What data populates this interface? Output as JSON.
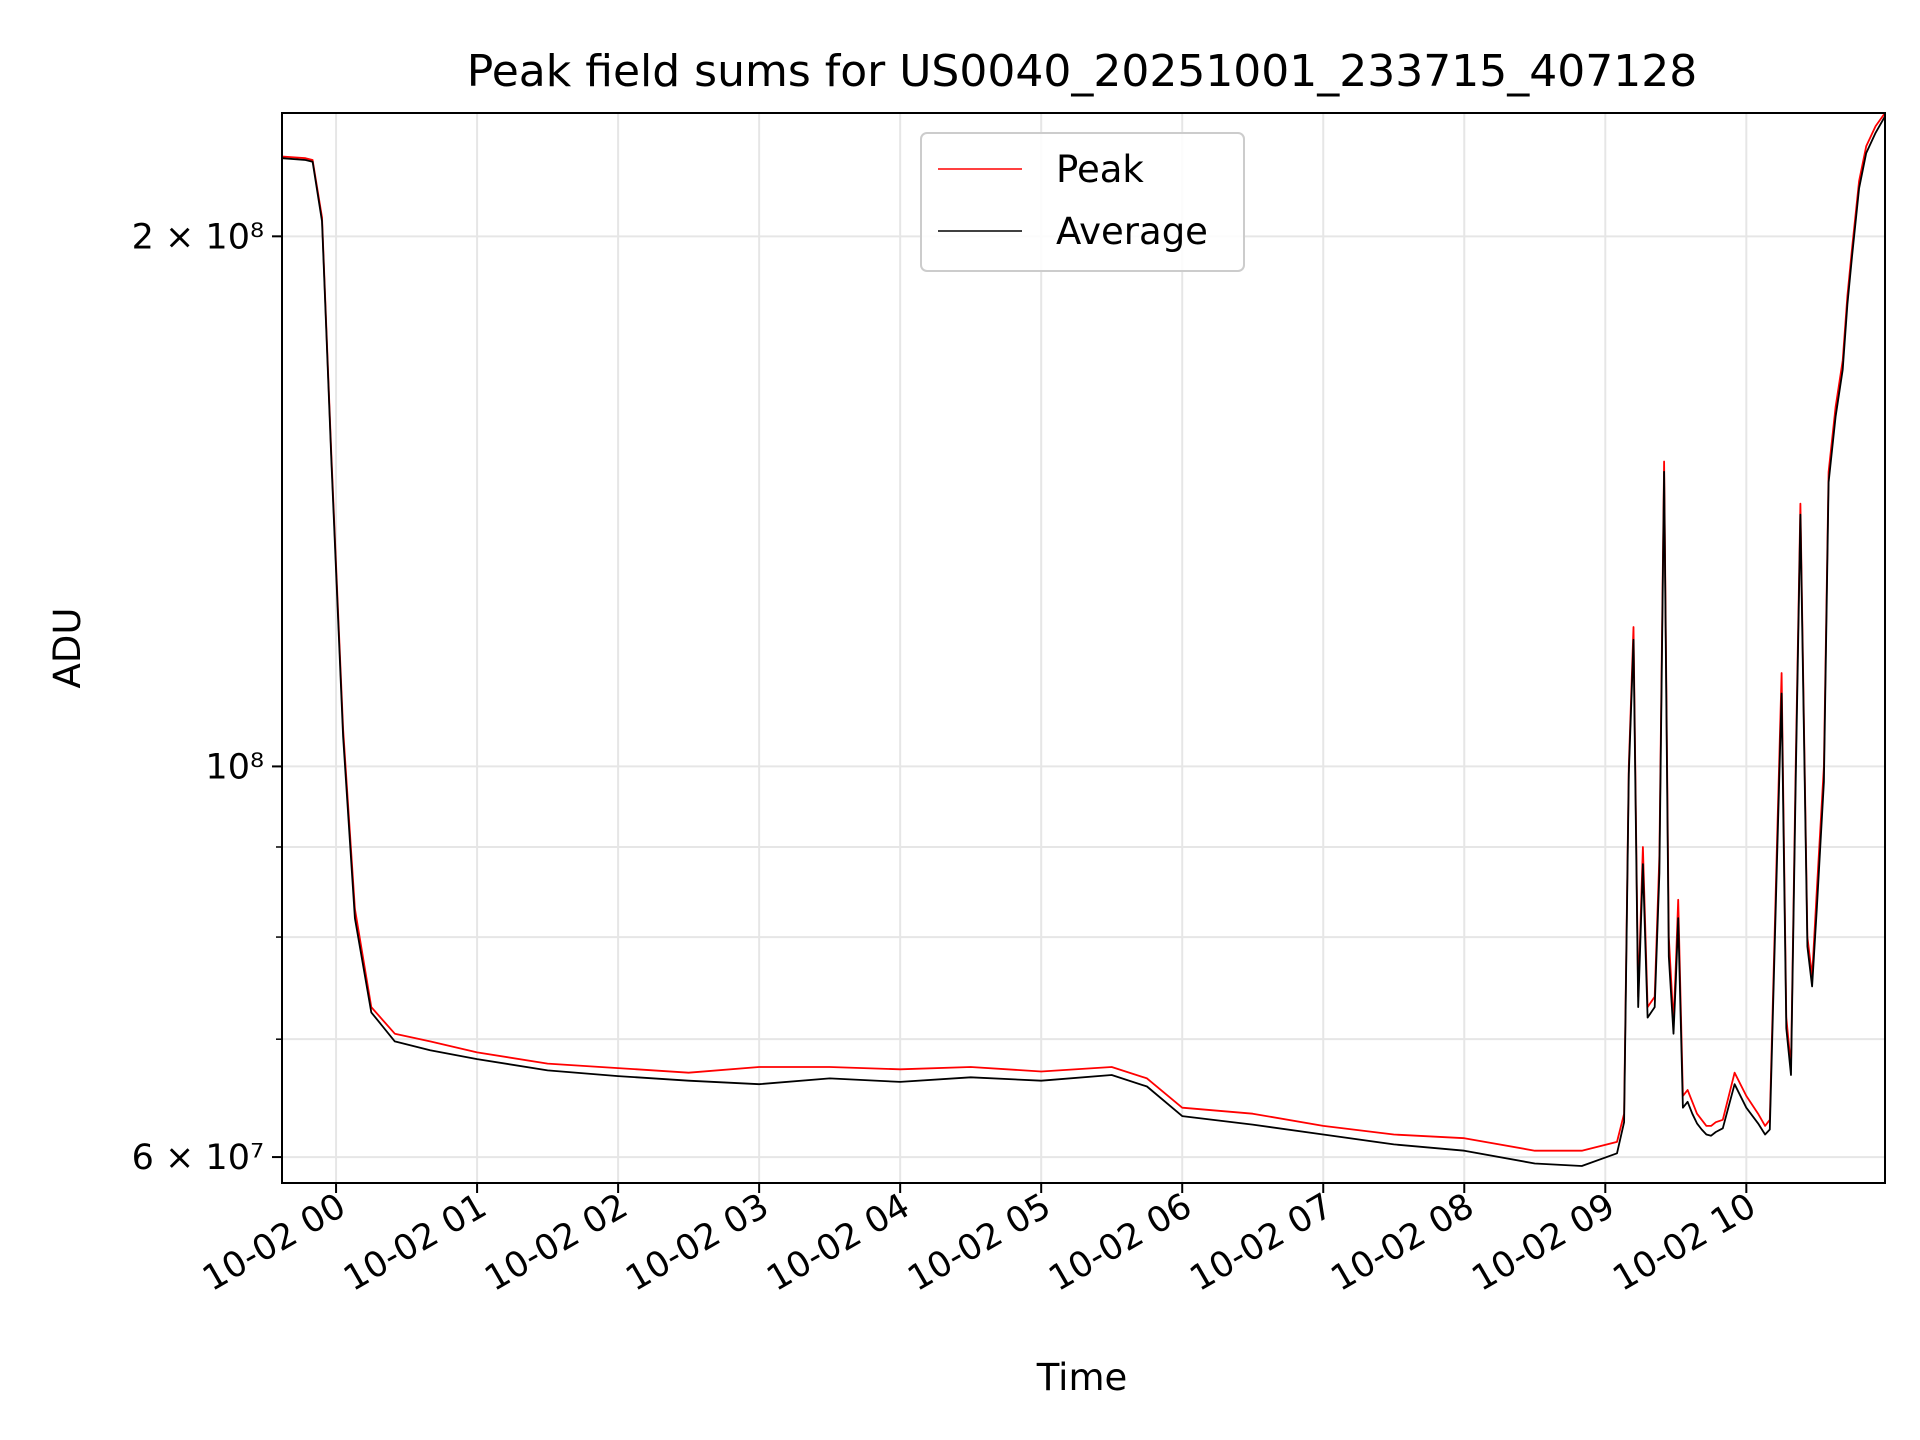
{
  "chart_data": {
    "type": "line",
    "title": "Peak field sums for US0040_20251001_233715_407128",
    "xlabel": "Time",
    "ylabel": "ADU",
    "yscale": "log",
    "xlim": [
      "2025-10-01 23:37",
      "2025-10-02 10:59"
    ],
    "ylim": [
      58000000,
      235000000
    ],
    "grid": true,
    "legend": "upper center",
    "x_ticks": [
      "10-02 00",
      "10-02 01",
      "10-02 02",
      "10-02 03",
      "10-02 04",
      "10-02 05",
      "10-02 06",
      "10-02 07",
      "10-02 08",
      "10-02 09",
      "10-02 10"
    ],
    "x_tick_times": [
      "2025-10-02 00:00",
      "2025-10-02 01:00",
      "2025-10-02 02:00",
      "2025-10-02 03:00",
      "2025-10-02 04:00",
      "2025-10-02 05:00",
      "2025-10-02 06:00",
      "2025-10-02 07:00",
      "2025-10-02 08:00",
      "2025-10-02 09:00",
      "2025-10-02 10:00"
    ],
    "y_major_ticks": [
      {
        "value": 60000000,
        "label": "6 × 10⁷"
      },
      {
        "value": 100000000,
        "label": "10⁸"
      },
      {
        "value": 200000000,
        "label": "2 × 10⁸"
      }
    ],
    "y_minor_ticks": [
      70000000,
      80000000,
      90000000
    ],
    "series": [
      {
        "name": "Peak",
        "color": "#ff0000",
        "x": [
          "2025-10-01 23:37",
          "2025-10-01 23:47",
          "2025-10-01 23:50",
          "2025-10-01 23:54",
          "2025-10-01 23:58",
          "2025-10-02 00:03",
          "2025-10-02 00:08",
          "2025-10-02 00:15",
          "2025-10-02 00:25",
          "2025-10-02 00:40",
          "2025-10-02 01:00",
          "2025-10-02 01:30",
          "2025-10-02 02:00",
          "2025-10-02 02:30",
          "2025-10-02 03:00",
          "2025-10-02 03:30",
          "2025-10-02 04:00",
          "2025-10-02 04:30",
          "2025-10-02 05:00",
          "2025-10-02 05:30",
          "2025-10-02 05:45",
          "2025-10-02 06:00",
          "2025-10-02 06:30",
          "2025-10-02 07:00",
          "2025-10-02 07:30",
          "2025-10-02 08:00",
          "2025-10-02 08:30",
          "2025-10-02 08:50",
          "2025-10-02 09:05",
          "2025-10-02 09:08",
          "2025-10-02 09:10",
          "2025-10-02 09:12",
          "2025-10-02 09:14",
          "2025-10-02 09:16",
          "2025-10-02 09:18",
          "2025-10-02 09:21",
          "2025-10-02 09:23",
          "2025-10-02 09:25",
          "2025-10-02 09:27",
          "2025-10-02 09:29",
          "2025-10-02 09:30",
          "2025-10-02 09:31",
          "2025-10-02 09:33",
          "2025-10-02 09:35",
          "2025-10-02 09:37",
          "2025-10-02 09:39",
          "2025-10-02 09:41",
          "2025-10-02 09:43",
          "2025-10-02 09:45",
          "2025-10-02 09:47",
          "2025-10-02 09:50",
          "2025-10-02 09:55",
          "2025-10-02 10:00",
          "2025-10-02 10:05",
          "2025-10-02 10:08",
          "2025-10-02 10:10",
          "2025-10-02 10:13",
          "2025-10-02 10:15",
          "2025-10-02 10:17",
          "2025-10-02 10:19",
          "2025-10-02 10:21",
          "2025-10-02 10:23",
          "2025-10-02 10:26",
          "2025-10-02 10:28",
          "2025-10-02 10:30",
          "2025-10-02 10:33",
          "2025-10-02 10:35",
          "2025-10-02 10:38",
          "2025-10-02 10:41",
          "2025-10-02 10:43",
          "2025-10-02 10:45",
          "2025-10-02 10:48",
          "2025-10-02 10:51",
          "2025-10-02 10:55",
          "2025-10-02 10:59"
        ],
        "y": [
          222000000,
          221500000,
          221000000,
          205000000,
          150000000,
          105000000,
          83000000,
          73000000,
          70500000,
          69800000,
          68800000,
          67800000,
          67400000,
          67000000,
          67500000,
          67500000,
          67300000,
          67500000,
          67100000,
          67500000,
          66500000,
          64000000,
          63500000,
          62500000,
          61800000,
          61500000,
          60500000,
          60500000,
          61200000,
          63500000,
          100000000,
          120000000,
          74000000,
          90000000,
          73000000,
          74000000,
          89000000,
          149000000,
          80000000,
          71500000,
          77000000,
          84000000,
          65000000,
          65500000,
          64500000,
          63500000,
          63000000,
          62500000,
          62500000,
          62800000,
          63000000,
          67000000,
          65000000,
          63500000,
          62500000,
          63000000,
          90000000,
          113000000,
          72000000,
          67500000,
          100000000,
          141000000,
          80000000,
          76000000,
          85000000,
          100000000,
          147000000,
          160000000,
          170000000,
          185000000,
          197000000,
          215000000,
          225000000,
          231000000,
          235000000
        ]
      },
      {
        "name": "Average",
        "color": "#000000",
        "x": [
          "2025-10-01 23:37",
          "2025-10-01 23:47",
          "2025-10-01 23:50",
          "2025-10-01 23:54",
          "2025-10-01 23:58",
          "2025-10-02 00:03",
          "2025-10-02 00:08",
          "2025-10-02 00:15",
          "2025-10-02 00:25",
          "2025-10-02 00:40",
          "2025-10-02 01:00",
          "2025-10-02 01:30",
          "2025-10-02 02:00",
          "2025-10-02 02:30",
          "2025-10-02 03:00",
          "2025-10-02 03:30",
          "2025-10-02 04:00",
          "2025-10-02 04:30",
          "2025-10-02 05:00",
          "2025-10-02 05:30",
          "2025-10-02 05:45",
          "2025-10-02 06:00",
          "2025-10-02 06:30",
          "2025-10-02 07:00",
          "2025-10-02 07:30",
          "2025-10-02 08:00",
          "2025-10-02 08:30",
          "2025-10-02 08:50",
          "2025-10-02 09:05",
          "2025-10-02 09:08",
          "2025-10-02 09:10",
          "2025-10-02 09:12",
          "2025-10-02 09:14",
          "2025-10-02 09:16",
          "2025-10-02 09:18",
          "2025-10-02 09:21",
          "2025-10-02 09:23",
          "2025-10-02 09:25",
          "2025-10-02 09:27",
          "2025-10-02 09:29",
          "2025-10-02 09:30",
          "2025-10-02 09:31",
          "2025-10-02 09:33",
          "2025-10-02 09:35",
          "2025-10-02 09:37",
          "2025-10-02 09:39",
          "2025-10-02 09:41",
          "2025-10-02 09:43",
          "2025-10-02 09:45",
          "2025-10-02 09:47",
          "2025-10-02 09:50",
          "2025-10-02 09:55",
          "2025-10-02 10:00",
          "2025-10-02 10:05",
          "2025-10-02 10:08",
          "2025-10-02 10:10",
          "2025-10-02 10:13",
          "2025-10-02 10:15",
          "2025-10-02 10:17",
          "2025-10-02 10:19",
          "2025-10-02 10:21",
          "2025-10-02 10:23",
          "2025-10-02 10:26",
          "2025-10-02 10:28",
          "2025-10-02 10:30",
          "2025-10-02 10:33",
          "2025-10-02 10:35",
          "2025-10-02 10:38",
          "2025-10-02 10:41",
          "2025-10-02 10:43",
          "2025-10-02 10:45",
          "2025-10-02 10:48",
          "2025-10-02 10:51",
          "2025-10-02 10:55",
          "2025-10-02 10:59"
        ],
        "y": [
          221500000,
          221000000,
          220500000,
          204000000,
          149000000,
          104000000,
          82000000,
          72500000,
          69800000,
          69000000,
          68200000,
          67200000,
          66700000,
          66300000,
          66000000,
          66500000,
          66200000,
          66600000,
          66300000,
          66800000,
          65800000,
          63300000,
          62600000,
          61800000,
          61000000,
          60500000,
          59500000,
          59300000,
          60300000,
          62800000,
          99000000,
          118000000,
          73000000,
          88000000,
          72000000,
          73000000,
          87000000,
          147000000,
          78000000,
          70500000,
          75500000,
          82000000,
          64000000,
          64500000,
          63500000,
          62700000,
          62200000,
          61800000,
          61700000,
          62000000,
          62300000,
          66000000,
          64000000,
          62700000,
          61800000,
          62200000,
          88000000,
          110000000,
          71000000,
          66800000,
          98000000,
          139000000,
          79000000,
          75000000,
          83000000,
          98000000,
          145000000,
          158000000,
          168000000,
          183000000,
          195000000,
          213000000,
          223000000,
          229000000,
          234000000
        ]
      }
    ]
  }
}
